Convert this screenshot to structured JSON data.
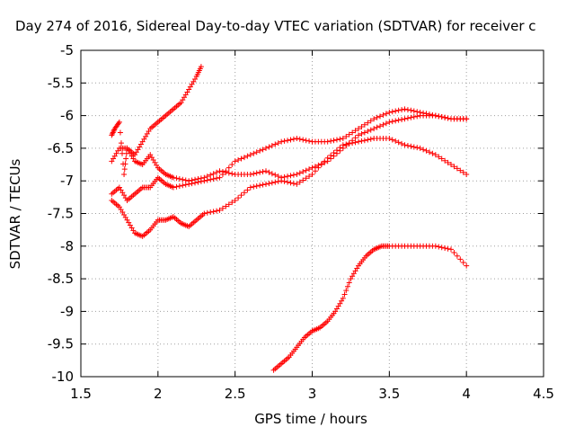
{
  "chart_data": {
    "type": "scatter",
    "title": "Day 274 of 2016, Sidereal Day-to-day VTEC variation (SDTVAR) for receiver c",
    "xlabel": "GPS time / hours",
    "ylabel": "SDTVAR / TECUs",
    "xlim": [
      1.5,
      4.5
    ],
    "ylim": [
      -10,
      -5
    ],
    "x_ticks": [
      "1.5",
      "2",
      "2.5",
      "3",
      "3.5",
      "4",
      "4.5"
    ],
    "y_ticks": [
      "-5",
      "-5.5",
      "-6",
      "-6.5",
      "-7",
      "-7.5",
      "-8",
      "-8.5",
      "-9",
      "-9.5",
      "-10"
    ],
    "grid": true,
    "marker": "+",
    "color": "#ff0000",
    "series": [
      {
        "points": [
          [
            1.7,
            -6.3
          ],
          [
            1.72,
            -6.2
          ],
          [
            1.75,
            -6.1
          ],
          [
            1.78,
            -6.9
          ],
          [
            1.8,
            -6.5
          ],
          [
            1.85,
            -6.6
          ],
          [
            1.9,
            -6.4
          ],
          [
            1.95,
            -6.2
          ],
          [
            2.0,
            -6.1
          ],
          [
            2.05,
            -6.0
          ],
          [
            2.1,
            -5.9
          ],
          [
            2.15,
            -5.8
          ],
          [
            2.2,
            -5.6
          ],
          [
            2.25,
            -5.4
          ],
          [
            2.28,
            -5.25
          ]
        ]
      },
      {
        "points": [
          [
            1.7,
            -6.7
          ],
          [
            1.75,
            -6.5
          ],
          [
            1.8,
            -6.5
          ],
          [
            1.85,
            -6.7
          ],
          [
            1.9,
            -6.75
          ],
          [
            1.95,
            -6.6
          ],
          [
            2.0,
            -6.8
          ],
          [
            2.05,
            -6.9
          ],
          [
            2.1,
            -6.95
          ],
          [
            2.2,
            -7.0
          ],
          [
            2.3,
            -6.95
          ],
          [
            2.4,
            -6.85
          ],
          [
            2.5,
            -6.9
          ],
          [
            2.6,
            -6.9
          ],
          [
            2.7,
            -6.85
          ],
          [
            2.8,
            -6.95
          ],
          [
            2.9,
            -6.9
          ],
          [
            3.0,
            -6.8
          ],
          [
            3.1,
            -6.7
          ],
          [
            3.2,
            -6.5
          ],
          [
            3.3,
            -6.3
          ],
          [
            3.4,
            -6.2
          ],
          [
            3.5,
            -6.1
          ],
          [
            3.6,
            -6.05
          ],
          [
            3.7,
            -6.0
          ],
          [
            3.8,
            -6.0
          ],
          [
            3.9,
            -6.05
          ],
          [
            4.0,
            -6.05
          ]
        ]
      },
      {
        "points": [
          [
            1.7,
            -7.2
          ],
          [
            1.75,
            -7.1
          ],
          [
            1.8,
            -7.3
          ],
          [
            1.85,
            -7.2
          ],
          [
            1.9,
            -7.1
          ],
          [
            1.95,
            -7.1
          ],
          [
            2.0,
            -6.95
          ],
          [
            2.05,
            -7.05
          ],
          [
            2.1,
            -7.1
          ],
          [
            2.2,
            -7.05
          ],
          [
            2.3,
            -7.0
          ],
          [
            2.4,
            -6.95
          ],
          [
            2.5,
            -6.7
          ],
          [
            2.6,
            -6.6
          ],
          [
            2.7,
            -6.5
          ],
          [
            2.8,
            -6.4
          ],
          [
            2.9,
            -6.35
          ],
          [
            3.0,
            -6.4
          ],
          [
            3.1,
            -6.4
          ],
          [
            3.2,
            -6.35
          ],
          [
            3.3,
            -6.2
          ],
          [
            3.4,
            -6.05
          ],
          [
            3.5,
            -5.95
          ],
          [
            3.6,
            -5.9
          ],
          [
            3.7,
            -5.95
          ],
          [
            3.8,
            -6.0
          ],
          [
            3.9,
            -6.05
          ],
          [
            4.0,
            -6.05
          ]
        ]
      },
      {
        "points": [
          [
            1.7,
            -7.3
          ],
          [
            1.75,
            -7.4
          ],
          [
            1.8,
            -7.6
          ],
          [
            1.85,
            -7.8
          ],
          [
            1.9,
            -7.85
          ],
          [
            1.95,
            -7.75
          ],
          [
            2.0,
            -7.6
          ],
          [
            2.05,
            -7.6
          ],
          [
            2.1,
            -7.55
          ],
          [
            2.15,
            -7.65
          ],
          [
            2.2,
            -7.7
          ],
          [
            2.25,
            -7.6
          ],
          [
            2.3,
            -7.5
          ],
          [
            2.4,
            -7.45
          ],
          [
            2.5,
            -7.3
          ],
          [
            2.6,
            -7.1
          ],
          [
            2.7,
            -7.05
          ],
          [
            2.8,
            -7.0
          ],
          [
            2.9,
            -7.05
          ],
          [
            3.0,
            -6.9
          ],
          [
            3.1,
            -6.65
          ],
          [
            3.2,
            -6.45
          ],
          [
            3.3,
            -6.4
          ],
          [
            3.4,
            -6.35
          ],
          [
            3.5,
            -6.35
          ],
          [
            3.6,
            -6.45
          ],
          [
            3.7,
            -6.5
          ],
          [
            3.8,
            -6.6
          ],
          [
            3.9,
            -6.75
          ],
          [
            4.0,
            -6.9
          ]
        ]
      },
      {
        "points": [
          [
            2.75,
            -9.9
          ],
          [
            2.8,
            -9.8
          ],
          [
            2.85,
            -9.7
          ],
          [
            2.9,
            -9.55
          ],
          [
            2.95,
            -9.4
          ],
          [
            3.0,
            -9.3
          ],
          [
            3.05,
            -9.25
          ],
          [
            3.1,
            -9.15
          ],
          [
            3.15,
            -9.0
          ],
          [
            3.2,
            -8.8
          ],
          [
            3.25,
            -8.5
          ],
          [
            3.3,
            -8.3
          ],
          [
            3.35,
            -8.15
          ],
          [
            3.4,
            -8.05
          ],
          [
            3.45,
            -8.0
          ],
          [
            3.5,
            -8.0
          ],
          [
            3.6,
            -8.0
          ],
          [
            3.7,
            -8.0
          ],
          [
            3.8,
            -8.0
          ],
          [
            3.9,
            -8.05
          ],
          [
            4.0,
            -8.3
          ]
        ]
      }
    ]
  }
}
